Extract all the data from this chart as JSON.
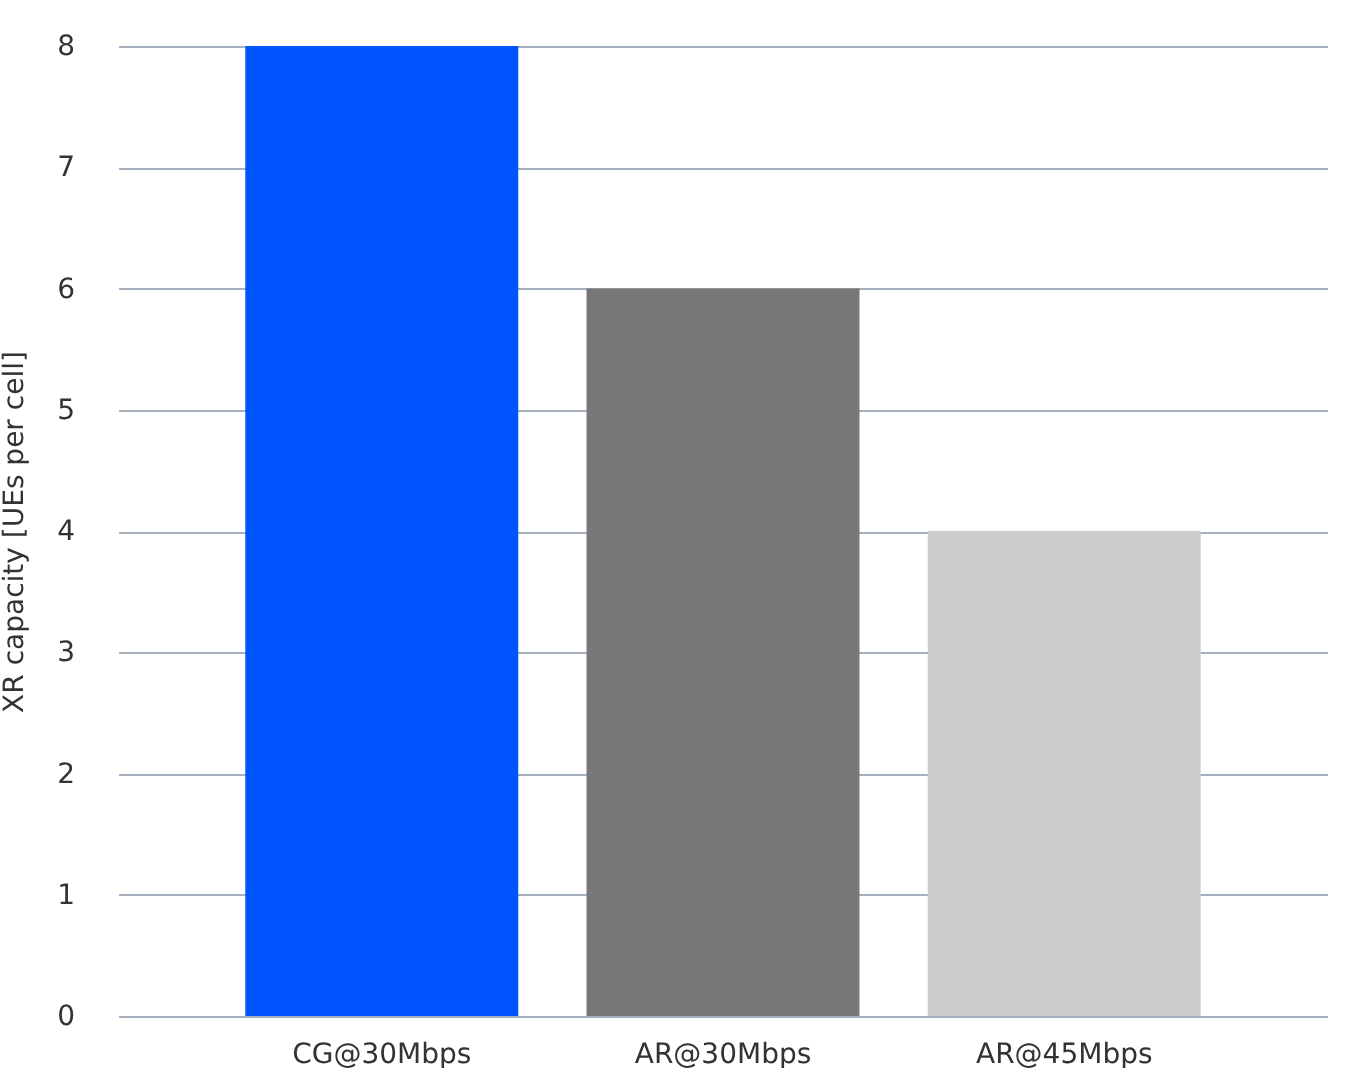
{
  "chart_data": {
    "type": "bar",
    "ylabel": "XR capacity [UEs per cell]",
    "categories": [
      "CG@30Mbps",
      "AR@30Mbps",
      "AR@45Mbps"
    ],
    "values": [
      8,
      6,
      4
    ],
    "colors": [
      "#0055ff",
      "#777777",
      "#cccccc"
    ],
    "ylim": [
      0,
      8
    ],
    "yticks": [
      0,
      1,
      2,
      3,
      4,
      5,
      6,
      7,
      8
    ],
    "grid": "y"
  }
}
